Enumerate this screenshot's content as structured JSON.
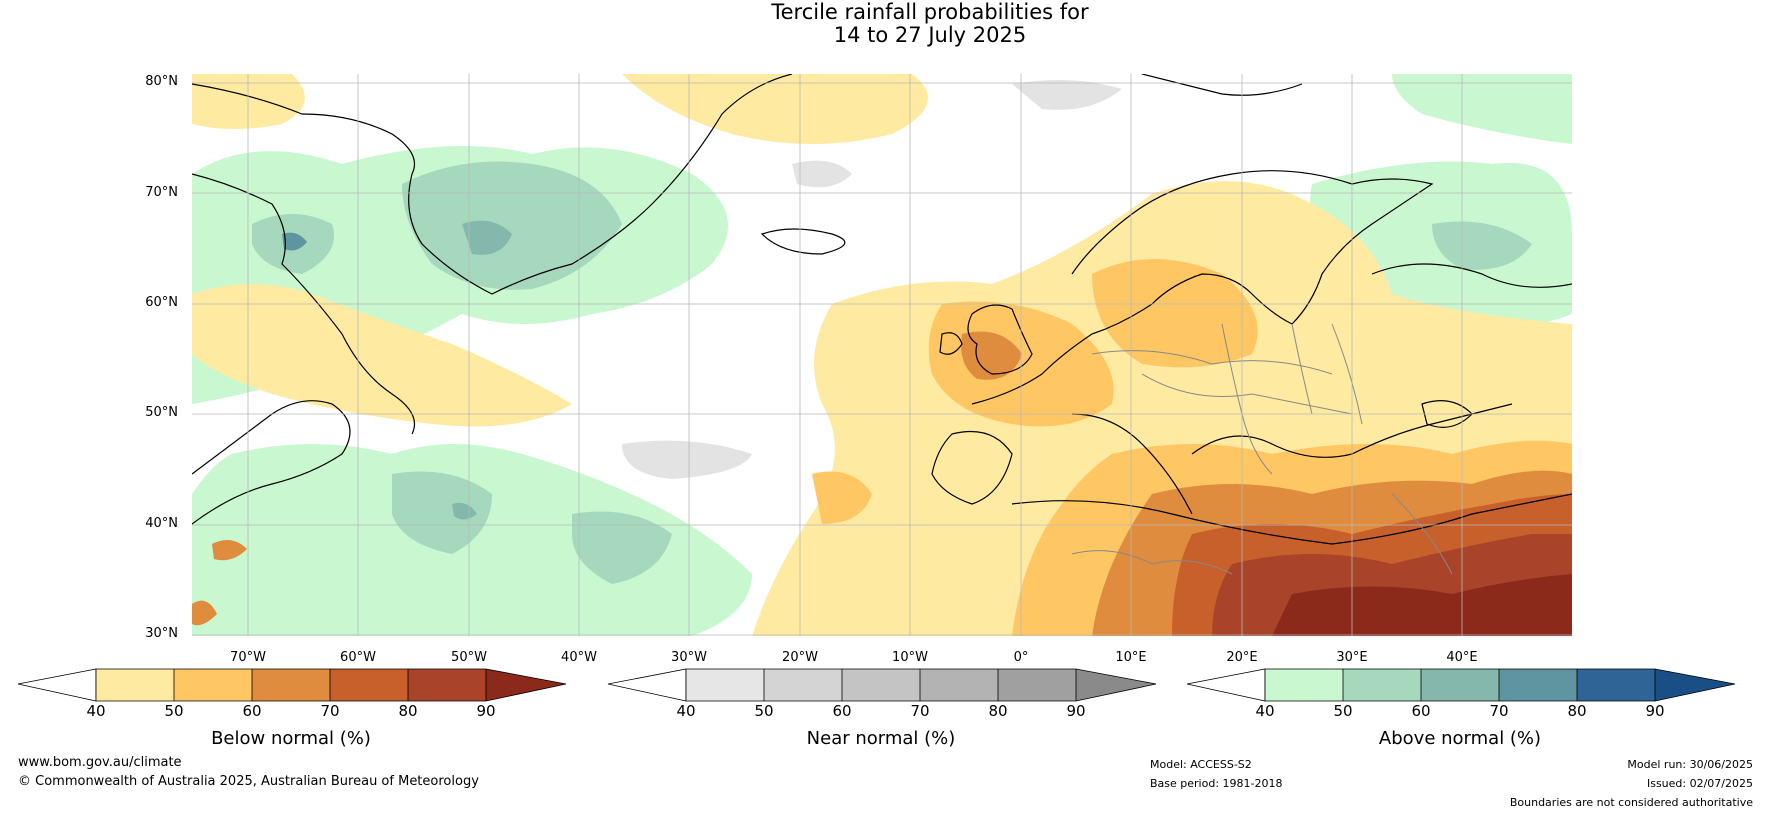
{
  "header": {
    "title_line1": "Tercile rainfall probabilities for",
    "title_line2": "14 to 27 July 2025"
  },
  "map": {
    "lat_labels": [
      "80°N",
      "70°N",
      "60°N",
      "50°N",
      "40°N",
      "30°N"
    ],
    "lon_labels": [
      "70°W",
      "60°W",
      "50°W",
      "40°W",
      "30°W",
      "20°W",
      "10°W",
      "0°",
      "10°E",
      "20°E",
      "30°E",
      "40°E"
    ]
  },
  "colorbars": {
    "below": {
      "label": "Below normal (%)",
      "ticks": [
        "40",
        "50",
        "60",
        "70",
        "80",
        "90"
      ],
      "colors": [
        "#ffeaa2",
        "#ffc764",
        "#e08c3e",
        "#c8602c",
        "#a9432a",
        "#8b2a1a"
      ]
    },
    "near": {
      "label": "Near normal (%)",
      "ticks": [
        "40",
        "50",
        "60",
        "70",
        "80",
        "90"
      ],
      "colors": [
        "#e6e6e6",
        "#d4d4d4",
        "#c4c4c4",
        "#b3b3b3",
        "#a0a0a0",
        "#8a8a8a"
      ]
    },
    "above": {
      "label": "Above normal (%)",
      "ticks": [
        "40",
        "50",
        "60",
        "70",
        "80",
        "90"
      ],
      "colors": [
        "#c9f7cf",
        "#a5d8bd",
        "#85b8ac",
        "#5f94a1",
        "#2f6497",
        "#1a4f85"
      ]
    }
  },
  "footer": {
    "website": "www.bom.gov.au/climate",
    "copyright": "© Commonwealth of Australia 2025, Australian Bureau of Meteorology",
    "model": "Model: ACCESS-S2",
    "base_period": "Base period: 1981-2018",
    "model_run": "Model run: 30/06/2025",
    "issued": "Issued: 02/07/2025",
    "disclaimer": "Boundaries are not considered authoritative"
  }
}
